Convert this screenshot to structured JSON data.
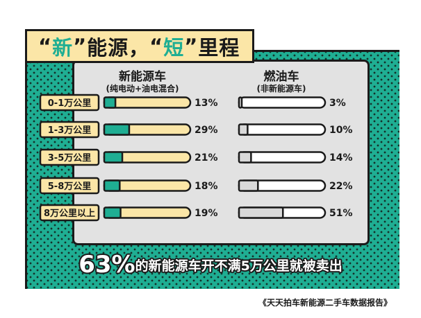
{
  "banner": {
    "q1_open": "“",
    "word1": "新",
    "q1_close": "”",
    "mid": "能源，",
    "q2_open": "“",
    "word2": "短",
    "q2_close": "”",
    "tail": "里程"
  },
  "columns": {
    "ev": {
      "title": "新能源车",
      "subtitle": "(纯电动+油电混合)"
    },
    "ice": {
      "title": "燃油车",
      "subtitle": "(非新能源车)"
    }
  },
  "headline": {
    "big": "63%",
    "rest": "的新能源车开不满5万公里就被卖出"
  },
  "source": "《天天拍车新能源二手车数据报告》",
  "colors": {
    "green": "#1fae93",
    "cream": "#fbe6a7",
    "white": "#ffffff",
    "grey": "#d9d9d9",
    "ink": "#1a1a1a"
  },
  "chart_data": {
    "type": "bar",
    "categories": [
      "0-1万公里",
      "1-3万公里",
      "3-5万公里",
      "5-8万公里",
      "8万公里以上"
    ],
    "series": [
      {
        "name": "新能源车",
        "values": [
          13,
          29,
          21,
          18,
          19
        ]
      },
      {
        "name": "燃油车",
        "values": [
          3,
          10,
          14,
          22,
          51
        ]
      }
    ],
    "labels_ev": [
      "13%",
      "29%",
      "21%",
      "18%",
      "19%"
    ],
    "labels_ice": [
      "3%",
      "10%",
      "14%",
      "22%",
      "51%"
    ],
    "unit": "%",
    "ylim": [
      0,
      100
    ]
  }
}
